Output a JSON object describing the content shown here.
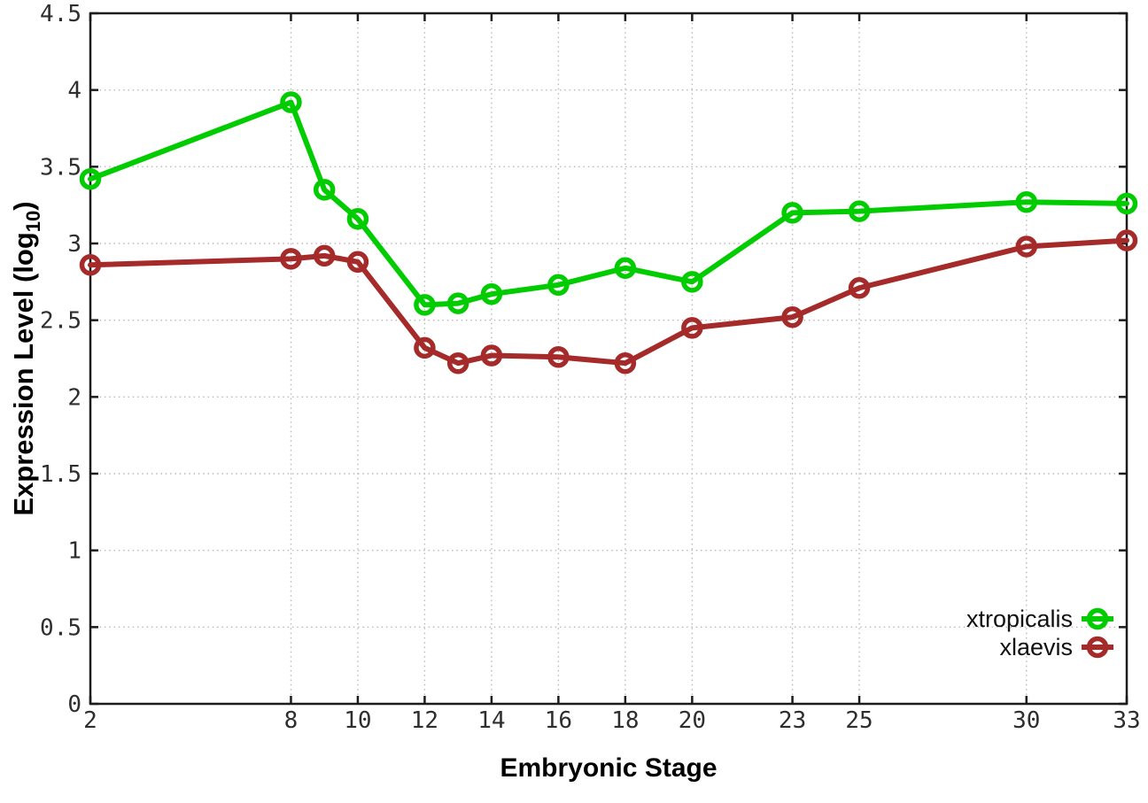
{
  "figure": {
    "background": "#ffffff",
    "border_color": "#1c1c1c",
    "grid_color": "#b9b9b9",
    "tick_text_color": "#2e2e2e"
  },
  "chart_data": {
    "type": "line",
    "title": "",
    "xlabel": "Embryonic Stage",
    "ylabel": "Expression Level (log10)",
    "ylabel_parts": {
      "prefix": "Expression Level (log",
      "sub": "10",
      "suffix": ")"
    },
    "x": [
      2,
      8,
      9,
      10,
      12,
      13,
      14,
      16,
      18,
      20,
      23,
      25,
      30,
      33
    ],
    "series": [
      {
        "name": "xtropicalis",
        "color": "#00cc00",
        "values": [
          3.42,
          3.92,
          3.35,
          3.16,
          2.6,
          2.61,
          2.67,
          2.73,
          2.84,
          2.75,
          3.2,
          3.21,
          3.27,
          3.26
        ]
      },
      {
        "name": "xlaevis",
        "color": "#a52a2a",
        "values": [
          2.86,
          2.9,
          2.92,
          2.88,
          2.32,
          2.22,
          2.27,
          2.26,
          2.22,
          2.45,
          2.52,
          2.71,
          2.98,
          3.02
        ]
      }
    ],
    "xlim": [
      2,
      33
    ],
    "ylim": [
      0,
      4.5
    ],
    "xticks": [
      2,
      8,
      10,
      12,
      14,
      16,
      18,
      20,
      23,
      25,
      30,
      33
    ],
    "xtick_labels": [
      "2",
      "8",
      "10",
      "12",
      "14",
      "16",
      "18",
      "20",
      "23",
      "25",
      "30",
      "33"
    ],
    "yticks": [
      0,
      0.5,
      1,
      1.5,
      2,
      2.5,
      3,
      3.5,
      4,
      4.5
    ],
    "ytick_labels": [
      "0",
      "0.5",
      "1",
      "1.5",
      "2",
      "2.5",
      "3",
      "3.5",
      "4",
      "4.5"
    ],
    "grid": "dotted",
    "marker": "open-circle",
    "legend_position": "bottom-right"
  }
}
